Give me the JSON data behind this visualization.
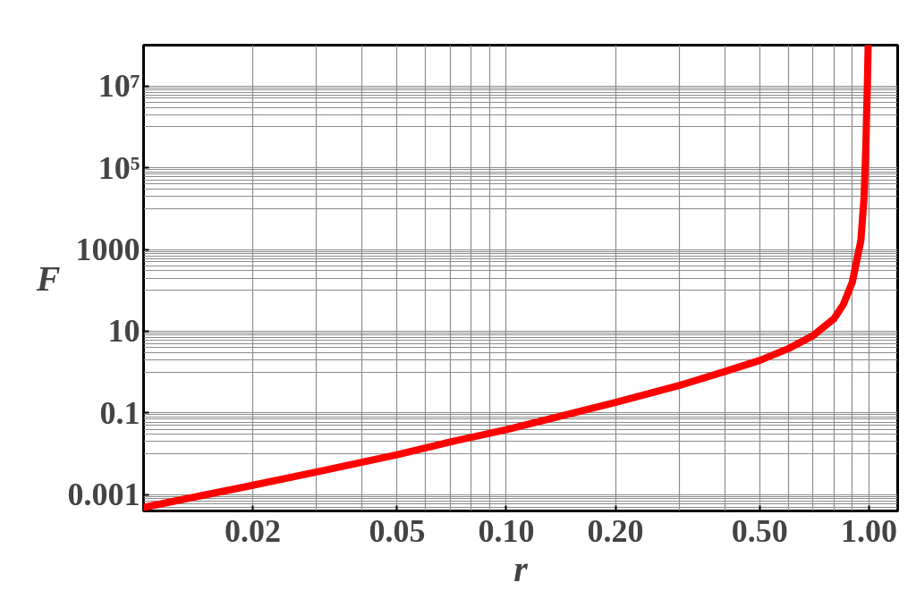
{
  "chart_data": {
    "type": "line",
    "xlabel": "r",
    "ylabel": "F",
    "log": "xy",
    "grid": true,
    "marker": "none",
    "line_style": "solid",
    "xlim": [
      0.01,
      1.2
    ],
    "ylim": [
      0.0004,
      100000000
    ],
    "xticks": [
      0.02,
      0.05,
      {
        "value": 0.1,
        "label": "0.10"
      },
      {
        "value": 0.2,
        "label": "0.20"
      },
      {
        "value": 0.5,
        "label": "0.50"
      },
      {
        "value": 1.0,
        "label": "1.00"
      }
    ],
    "yticks": [
      0.001,
      0.1,
      10,
      1000,
      {
        "value": 100000,
        "label": "10⁵"
      },
      {
        "value": 10000000,
        "label": "10⁷"
      }
    ],
    "x": [
      0.01,
      0.02,
      0.03,
      0.05,
      0.07,
      0.1,
      0.2,
      0.3,
      0.4,
      0.5,
      0.6,
      0.7,
      0.8,
      0.85,
      0.9,
      0.95,
      0.97,
      0.98,
      0.99,
      0.995
    ],
    "series": [
      {
        "color": "#ff0000",
        "values": [
          0.00049,
          0.0017,
          0.0036,
          0.0095,
          0.0195,
          0.039,
          0.18,
          0.47,
          1.03,
          1.93,
          3.76,
          7.7,
          20,
          45,
          160,
          1650,
          20000,
          300000,
          11000000,
          100000000
        ]
      }
    ]
  }
}
